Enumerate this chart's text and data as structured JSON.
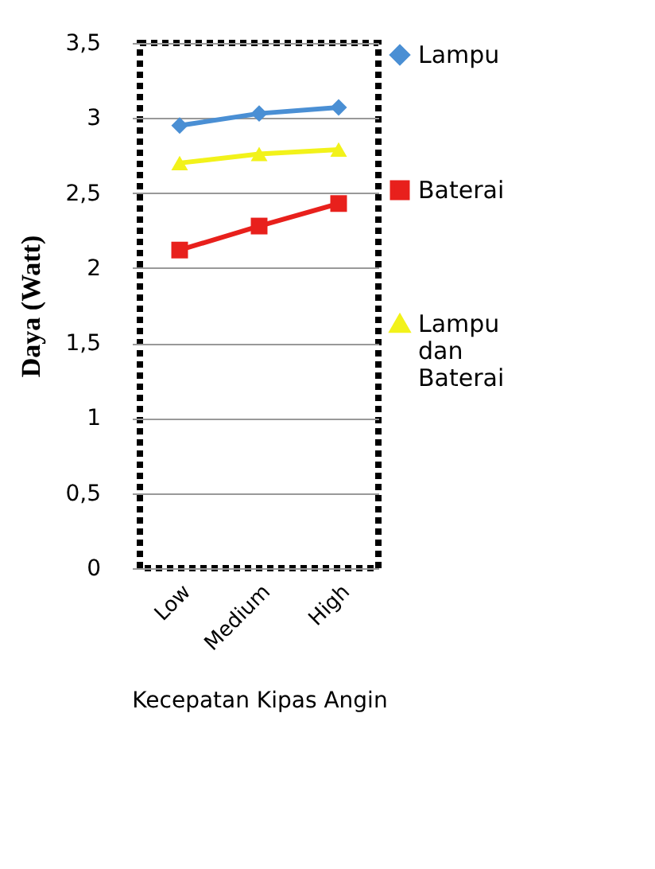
{
  "chart_data": {
    "type": "line",
    "xlabel": "Kecepatan Kipas Angin",
    "ylabel": "Daya (Watt)",
    "categories": [
      "Low",
      "Medium",
      "High"
    ],
    "series": [
      {
        "name": "Lampu",
        "color": "#4a8fd4",
        "marker": "diamond",
        "values": [
          2.95,
          3.03,
          3.07
        ]
      },
      {
        "name": "Baterai",
        "color": "#e8201c",
        "marker": "square",
        "values": [
          2.12,
          2.28,
          2.43
        ]
      },
      {
        "name": "Lampu dan Baterai",
        "color": "#f2f21a",
        "marker": "triangle",
        "values": [
          2.7,
          2.76,
          2.79
        ]
      }
    ],
    "ylim": [
      0,
      3.5
    ],
    "yticks": [
      0,
      {
        "value": 0.5,
        "label": "0,5"
      },
      1,
      {
        "value": 1.5,
        "label": "1,5"
      },
      2,
      {
        "value": 2.5,
        "label": "2,5"
      },
      3,
      {
        "value": 3.5,
        "label": "3,5"
      }
    ],
    "grid": "y",
    "legend": "right",
    "line_style": "solid"
  }
}
